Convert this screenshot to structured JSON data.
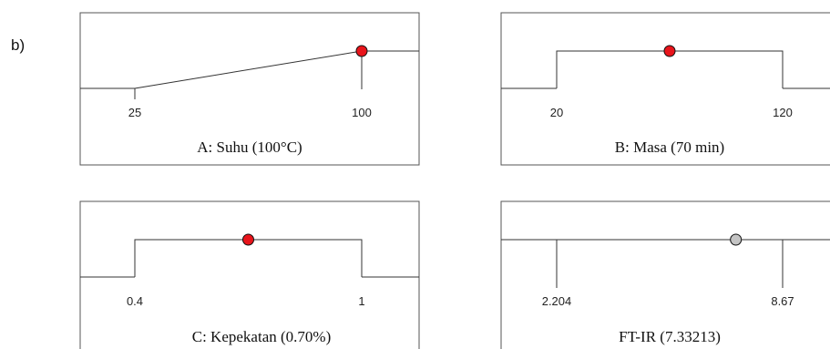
{
  "figure": {
    "panel_label": "b)"
  },
  "chart_data": [
    {
      "type": "line",
      "title": "A: Suhu (100°C)",
      "ticks": [
        "25",
        "100"
      ],
      "x_range": [
        25,
        100
      ],
      "profile": [
        [
          25,
          0
        ],
        [
          100,
          1
        ]
      ],
      "selected": {
        "x": 100,
        "y": 1,
        "color": "#e8141b"
      }
    },
    {
      "type": "line",
      "title": "B: Masa (70 min)",
      "ticks": [
        "20",
        "120"
      ],
      "x_range": [
        20,
        120
      ],
      "profile": [
        [
          20,
          0
        ],
        [
          20,
          1
        ],
        [
          120,
          1
        ],
        [
          120,
          0
        ]
      ],
      "selected": {
        "x": 70,
        "y": 1,
        "color": "#e8141b"
      }
    },
    {
      "type": "line",
      "title": "C: Kepekatan (0.70%)",
      "ticks": [
        "0.4",
        "1"
      ],
      "x_range": [
        0.4,
        1
      ],
      "profile": [
        [
          0.4,
          0
        ],
        [
          0.4,
          1
        ],
        [
          1,
          1
        ],
        [
          1,
          0
        ]
      ],
      "selected": {
        "x": 0.7,
        "y": 1,
        "color": "#e8141b"
      }
    },
    {
      "type": "line",
      "title": "FT-IR (7.33213)",
      "ticks": [
        "2.204",
        "8.67"
      ],
      "x_range": [
        2.204,
        8.67
      ],
      "profile": [
        [
          2.204,
          1
        ],
        [
          8.67,
          1
        ]
      ],
      "selected": {
        "x": 7.33213,
        "y": 1,
        "color": "#c4c4c4"
      }
    }
  ]
}
